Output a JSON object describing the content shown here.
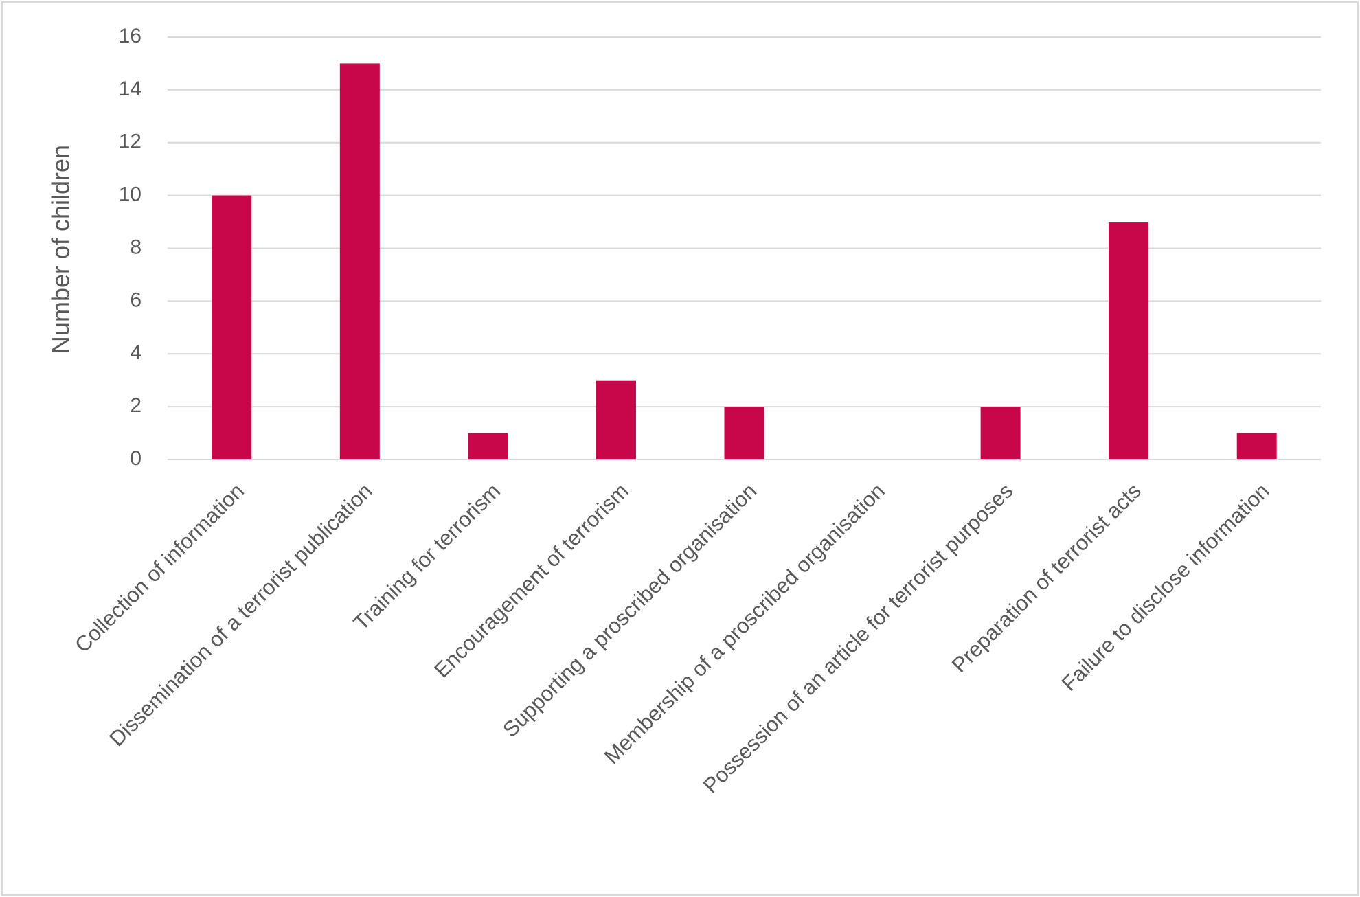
{
  "chart_data": {
    "type": "bar",
    "y_label": "Number of children",
    "categories": [
      "Collection of information",
      "Dissemination of a terrorist publication",
      "Training for terrorism",
      "Encouragement of terrorism",
      "Supporting a proscribed organisation",
      "Membership of a proscribed organisation",
      "Possession of an article for terrorist purposes",
      "Preparation of terrorist acts",
      "Failure to disclose information"
    ],
    "values": [
      10,
      15,
      1,
      3,
      2,
      0,
      2,
      9,
      1
    ],
    "color": "#c8074a",
    "ylim": [
      0,
      16
    ],
    "yticks": [
      0,
      2,
      4,
      6,
      8,
      10,
      12,
      14,
      16
    ],
    "grid": true
  }
}
